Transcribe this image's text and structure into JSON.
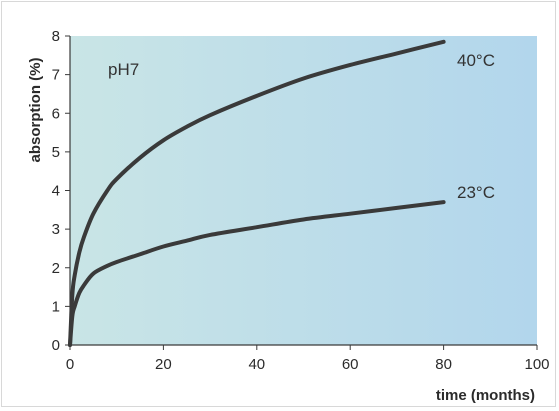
{
  "chart_data": {
    "type": "line",
    "title": "",
    "xlabel": "time (months)",
    "ylabel": "absorption (%)",
    "xlim": [
      0,
      100
    ],
    "ylim": [
      0,
      8
    ],
    "xticks": [
      0,
      20,
      40,
      60,
      80,
      100
    ],
    "yticks": [
      0,
      1,
      2,
      3,
      4,
      5,
      6,
      7,
      8
    ],
    "grid": false,
    "background": "light blue gradient",
    "colors": {
      "line": "#3a3a3a",
      "plot_light": "#c9e5e6",
      "plot_dark": "#b2d6ec"
    },
    "annotations": [
      {
        "id": "ph",
        "text": "pH7"
      },
      {
        "id": "t40",
        "text": "40°C"
      },
      {
        "id": "t23",
        "text": "23°C"
      }
    ],
    "series": [
      {
        "label_ref": "40°C",
        "x": [
          0,
          0.5,
          1,
          2,
          3,
          5,
          8,
          10,
          15,
          20,
          25,
          30,
          40,
          50,
          60,
          70,
          80
        ],
        "y": [
          0,
          1.3,
          1.8,
          2.4,
          2.8,
          3.4,
          4.0,
          4.3,
          4.85,
          5.3,
          5.65,
          5.95,
          6.45,
          6.9,
          7.25,
          7.55,
          7.85
        ]
      },
      {
        "label_ref": "23°C",
        "x": [
          0,
          0.5,
          1,
          2,
          3,
          5,
          8,
          10,
          15,
          20,
          25,
          30,
          40,
          50,
          60,
          70,
          80
        ],
        "y": [
          0,
          0.75,
          1.0,
          1.35,
          1.55,
          1.85,
          2.05,
          2.15,
          2.35,
          2.55,
          2.7,
          2.85,
          3.05,
          3.25,
          3.4,
          3.55,
          3.7
        ]
      }
    ]
  }
}
